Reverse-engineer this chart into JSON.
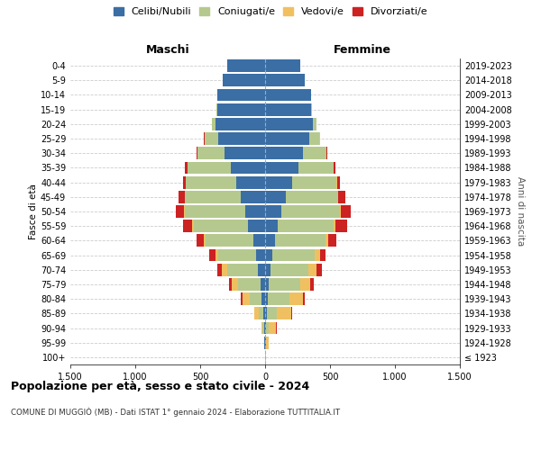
{
  "age_groups": [
    "100+",
    "95-99",
    "90-94",
    "85-89",
    "80-84",
    "75-79",
    "70-74",
    "65-69",
    "60-64",
    "55-59",
    "50-54",
    "45-49",
    "40-44",
    "35-39",
    "30-34",
    "25-29",
    "20-24",
    "15-19",
    "10-14",
    "5-9",
    "0-4"
  ],
  "birth_years": [
    "≤ 1923",
    "1924-1928",
    "1929-1933",
    "1934-1938",
    "1939-1943",
    "1944-1948",
    "1949-1953",
    "1954-1958",
    "1959-1963",
    "1964-1968",
    "1969-1973",
    "1974-1978",
    "1979-1983",
    "1984-1988",
    "1989-1993",
    "1994-1998",
    "1999-2003",
    "2004-2008",
    "2009-2013",
    "2014-2018",
    "2019-2023"
  ],
  "colors": {
    "celibi": "#3a6ea5",
    "coniugati": "#b5c98e",
    "vedovi": "#f0c060",
    "divorziati": "#cc2222"
  },
  "male": {
    "celibi": [
      2,
      4,
      8,
      15,
      25,
      35,
      55,
      70,
      90,
      130,
      155,
      185,
      220,
      265,
      310,
      360,
      380,
      370,
      370,
      325,
      290
    ],
    "coniugati": [
      0,
      2,
      10,
      35,
      95,
      175,
      240,
      290,
      370,
      420,
      460,
      430,
      390,
      330,
      210,
      105,
      30,
      5,
      0,
      0,
      0
    ],
    "vedovi": [
      0,
      2,
      10,
      30,
      55,
      45,
      35,
      25,
      15,
      10,
      8,
      5,
      3,
      2,
      1,
      1,
      1,
      0,
      0,
      0,
      0
    ],
    "divorziati": [
      0,
      0,
      2,
      5,
      12,
      20,
      40,
      45,
      55,
      75,
      65,
      45,
      18,
      20,
      8,
      5,
      2,
      0,
      0,
      0,
      0
    ]
  },
  "female": {
    "celibi": [
      2,
      4,
      10,
      15,
      20,
      30,
      45,
      55,
      75,
      100,
      125,
      160,
      210,
      255,
      295,
      340,
      370,
      355,
      355,
      305,
      270
    ],
    "coniugati": [
      0,
      4,
      20,
      75,
      165,
      240,
      290,
      330,
      390,
      430,
      450,
      400,
      340,
      270,
      175,
      80,
      25,
      5,
      0,
      0,
      0
    ],
    "vedovi": [
      2,
      20,
      55,
      110,
      105,
      80,
      60,
      40,
      20,
      12,
      8,
      5,
      3,
      2,
      1,
      1,
      1,
      0,
      0,
      0,
      0
    ],
    "divorziati": [
      0,
      1,
      3,
      8,
      15,
      25,
      45,
      40,
      65,
      90,
      75,
      50,
      20,
      18,
      8,
      4,
      2,
      0,
      0,
      0,
      0
    ]
  },
  "title": "Popolazione per età, sesso e stato civile - 2024",
  "subtitle": "COMUNE DI MUGGIÒ (MB) - Dati ISTAT 1° gennaio 2024 - Elaborazione TUTTITALIA.IT",
  "ylabel_left": "Fasce di età",
  "ylabel_right": "Anni di nascita",
  "xlabel_left": "Maschi",
  "xlabel_right": "Femmine",
  "xlim": 1500,
  "legend_labels": [
    "Celibi/Nubili",
    "Coniugati/e",
    "Vedovi/e",
    "Divorziati/e"
  ],
  "background_color": "#ffffff",
  "grid_color": "#cccccc"
}
